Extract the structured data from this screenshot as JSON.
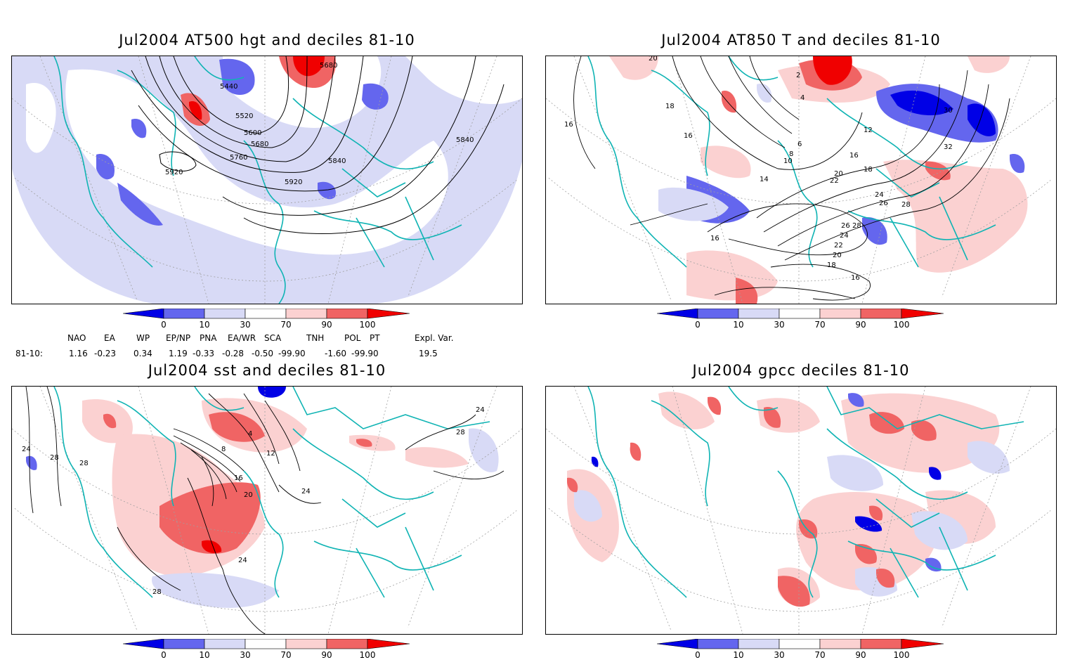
{
  "panels": [
    {
      "title": "Jul2004 AT500 hgt and deciles 81-10",
      "contour_labels": [
        "5440",
        "5520",
        "5600",
        "5680",
        "5760",
        "5840",
        "5920",
        "5920",
        "5680",
        "5840",
        "5920"
      ]
    },
    {
      "title": "Jul2004 AT850 T and deciles 81-10",
      "contour_labels": [
        "20",
        "18",
        "16",
        "16",
        "2",
        "4",
        "6",
        "8",
        "10",
        "12",
        "14",
        "16",
        "18",
        "20",
        "22",
        "24",
        "26",
        "28",
        "30",
        "32",
        "16",
        "16",
        "18",
        "20",
        "22",
        "24",
        "26",
        "28"
      ]
    },
    {
      "title": "Jul2004 sst and deciles 81-10",
      "contour_labels": [
        "24",
        "28",
        "28",
        "4",
        "8",
        "12",
        "16",
        "20",
        "24",
        "28",
        "24",
        "28",
        "24"
      ]
    },
    {
      "title": "Jul2004 gpcc deciles 81-10",
      "contour_labels": []
    }
  ],
  "colorbar": {
    "ticks": [
      "0",
      "10",
      "30",
      "70",
      "90",
      "100"
    ],
    "colors": [
      "#0000e6",
      "#6466ee",
      "#d8daf6",
      "#ffffff",
      "#fbd1d1",
      "#f06464",
      "#f00000"
    ]
  },
  "teleconnections": {
    "headers": [
      "NAO",
      "EA",
      "WP",
      "EP/NP",
      "PNA",
      "EA/WR",
      "SCA",
      "TNH",
      "POL",
      "PT",
      "Expl. Var."
    ],
    "row_label": "81-10:",
    "values": [
      "1.16",
      "-0.23",
      "0.34",
      "1.19",
      "-0.33",
      "-0.28",
      "-0.50",
      "-99.90",
      "-1.60",
      "-99.90",
      "19.5"
    ]
  },
  "colors": {
    "coast": "#10b4b4",
    "contour": "#000000",
    "grid": "#a0a0a0"
  }
}
